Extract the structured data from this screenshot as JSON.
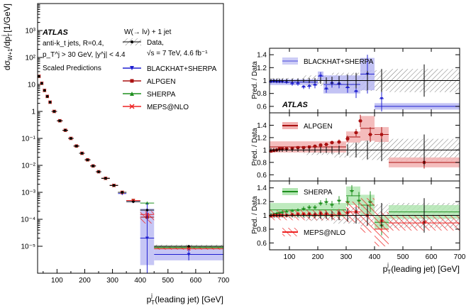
{
  "colors": {
    "data": "#000000",
    "blackhat": "#1f1fd0",
    "blackhat_band": "#b8b8f2",
    "alpgen": "#aa1111",
    "alpgen_band": "#f2b0b0",
    "sherpa": "#1f8f1f",
    "sherpa_band": "#b3e6b3",
    "meps": "#ee2222",
    "hatch": "#777777"
  },
  "chart_data": [
    {
      "type": "scatter",
      "xlabel": "p_T^j (leading jet) [GeV]",
      "ylabel": "dσ_W+1 / dp_T^j [1/GeV]",
      "xlim": [
        30,
        700
      ],
      "ylog": true,
      "ylim_exponents": [
        -6,
        4
      ],
      "x_ticks": [
        100,
        200,
        300,
        400,
        500,
        600,
        700
      ],
      "y_ticks": [
        {
          "exp": 3,
          "label": "10³"
        },
        {
          "exp": 2,
          "label": "10²"
        },
        {
          "exp": 1,
          "label": "10"
        },
        {
          "exp": 0,
          "label": "1"
        },
        {
          "exp": -1,
          "label": "10⁻¹"
        },
        {
          "exp": -2,
          "label": "10⁻²"
        },
        {
          "exp": -3,
          "label": "10⁻³"
        },
        {
          "exp": -4,
          "label": "10⁻⁴"
        },
        {
          "exp": -5,
          "label": "10⁻⁵"
        }
      ],
      "atlas_label": "ATLAS",
      "annotation_lines": [
        "anti-k_t jets, R=0.4,",
        "p_T^j > 30 GeV, |y^j| < 4.4",
        "Scaled Predictions"
      ],
      "process_label": "W(→ lν) + 1 jet",
      "legend": {
        "placement": "top-right",
        "data_label": "Data,",
        "data_sublabel": "√s = 7 TeV, 4.6 fb⁻¹",
        "entries": [
          "BLACKHAT+SHERPA",
          "ALPGEN",
          "SHERPA",
          "MEPS@NLO"
        ]
      },
      "bins": [
        [
          30,
          40
        ],
        [
          40,
          50
        ],
        [
          50,
          60
        ],
        [
          60,
          70
        ],
        [
          70,
          80
        ],
        [
          80,
          100
        ],
        [
          100,
          120
        ],
        [
          120,
          140
        ],
        [
          140,
          160
        ],
        [
          160,
          180
        ],
        [
          180,
          200
        ],
        [
          200,
          220
        ],
        [
          220,
          240
        ],
        [
          240,
          260
        ],
        [
          260,
          290
        ],
        [
          290,
          320
        ],
        [
          320,
          350
        ],
        [
          350,
          400
        ],
        [
          400,
          450
        ],
        [
          450,
          700
        ]
      ],
      "series": [
        {
          "name": "Data",
          "y": [
            20,
            11,
            6,
            3.6,
            2.2,
            1.0,
            0.45,
            0.2,
            0.1,
            0.052,
            0.028,
            0.016,
            0.0095,
            0.0058,
            0.0033,
            0.0018,
            0.001,
            0.00045,
            0.00022,
            1e-05
          ]
        },
        {
          "name": "BLACKHAT+SHERPA",
          "y": [
            20,
            11,
            6,
            3.6,
            2.2,
            1.0,
            0.45,
            0.2,
            0.1,
            0.052,
            0.028,
            0.016,
            0.0095,
            0.0058,
            0.0033,
            0.0018,
            0.0009,
            0.00045,
            2e-05,
            5e-06
          ]
        },
        {
          "name": "ALPGEN",
          "y": [
            20,
            11,
            6,
            3.6,
            2.2,
            1.0,
            0.45,
            0.2,
            0.1,
            0.052,
            0.028,
            0.016,
            0.0095,
            0.0058,
            0.0033,
            0.0018,
            0.001,
            0.0005,
            0.00012,
            9e-06
          ]
        },
        {
          "name": "SHERPA",
          "y": [
            20,
            11,
            6,
            3.6,
            2.2,
            1.0,
            0.45,
            0.2,
            0.1,
            0.052,
            0.028,
            0.016,
            0.0095,
            0.0058,
            0.0033,
            0.0018,
            0.001,
            0.0005,
            0.0004,
            9e-06
          ]
        },
        {
          "name": "MEPS@NLO",
          "y": [
            20,
            11,
            6,
            3.6,
            2.2,
            1.0,
            0.45,
            0.2,
            0.1,
            0.052,
            0.028,
            0.016,
            0.0095,
            0.0058,
            0.0033,
            0.0018,
            0.001,
            0.0005,
            0.00015,
            8e-06
          ]
        }
      ]
    },
    {
      "type": "scatter",
      "xlabel": "p_T^j (leading jet) [GeV]",
      "ylabel": "Pred. / Data",
      "xlim": [
        30,
        700
      ],
      "x_ticks": [
        100,
        200,
        300,
        400,
        500,
        600,
        700
      ],
      "atlas_label": "ATLAS",
      "panels": [
        {
          "legend": "BLACKHAT+SHERPA",
          "ylim": [
            0.5,
            1.5
          ],
          "y_ticks": [
            0.6,
            0.8,
            1,
            1.2,
            1.4
          ],
          "points": [
            {
              "x": 35,
              "y": 0.98,
              "e": 0.02
            },
            {
              "x": 45,
              "y": 0.99,
              "e": 0.02
            },
            {
              "x": 55,
              "y": 0.98,
              "e": 0.02
            },
            {
              "x": 65,
              "y": 0.98,
              "e": 0.02
            },
            {
              "x": 75,
              "y": 0.98,
              "e": 0.02
            },
            {
              "x": 90,
              "y": 0.97,
              "e": 0.02
            },
            {
              "x": 110,
              "y": 0.95,
              "e": 0.03
            },
            {
              "x": 130,
              "y": 0.95,
              "e": 0.03
            },
            {
              "x": 150,
              "y": 0.9,
              "e": 0.03
            },
            {
              "x": 170,
              "y": 0.91,
              "e": 0.04
            },
            {
              "x": 190,
              "y": 0.93,
              "e": 0.05
            },
            {
              "x": 210,
              "y": 1.07,
              "e": 0.06
            },
            {
              "x": 230,
              "y": 0.87,
              "e": 0.06
            },
            {
              "x": 250,
              "y": 0.96,
              "e": 0.07
            },
            {
              "x": 275,
              "y": 0.95,
              "e": 0.07
            },
            {
              "x": 305,
              "y": 0.89,
              "e": 0.08
            },
            {
              "x": 335,
              "y": 0.83,
              "e": 0.1
            },
            {
              "x": 375,
              "y": 1.1,
              "e": 0.3
            },
            {
              "x": 425,
              "y": 0.72,
              "e": 0.2
            }
          ],
          "bands": [
            {
              "x0": 30,
              "x1": 200,
              "lo": 0.93,
              "hi": 1.02
            },
            {
              "x0": 200,
              "x1": 220,
              "lo": 1.0,
              "hi": 1.14
            },
            {
              "x0": 220,
              "x1": 350,
              "lo": 0.8,
              "hi": 1.08
            },
            {
              "x0": 350,
              "x1": 400,
              "lo": 0.85,
              "hi": 1.35
            },
            {
              "x0": 400,
              "x1": 700,
              "lo": 0.55,
              "hi": 0.65
            }
          ]
        },
        {
          "legend": "ALPGEN",
          "ylim": [
            0.5,
            1.6
          ],
          "y_ticks": [
            0.6,
            0.8,
            1,
            1.2,
            1.4
          ],
          "points": [
            {
              "x": 35,
              "y": 0.98,
              "e": 0.02
            },
            {
              "x": 45,
              "y": 0.99,
              "e": 0.02
            },
            {
              "x": 55,
              "y": 1.0,
              "e": 0.02
            },
            {
              "x": 65,
              "y": 1.02,
              "e": 0.02
            },
            {
              "x": 75,
              "y": 1.02,
              "e": 0.02
            },
            {
              "x": 90,
              "y": 1.02,
              "e": 0.02
            },
            {
              "x": 110,
              "y": 1.03,
              "e": 0.02
            },
            {
              "x": 130,
              "y": 1.04,
              "e": 0.02
            },
            {
              "x": 150,
              "y": 1.04,
              "e": 0.02
            },
            {
              "x": 170,
              "y": 1.05,
              "e": 0.02
            },
            {
              "x": 190,
              "y": 1.06,
              "e": 0.03
            },
            {
              "x": 210,
              "y": 1.08,
              "e": 0.03
            },
            {
              "x": 230,
              "y": 1.09,
              "e": 0.03
            },
            {
              "x": 250,
              "y": 1.12,
              "e": 0.03
            },
            {
              "x": 275,
              "y": 1.13,
              "e": 0.04
            },
            {
              "x": 305,
              "y": 1.18,
              "e": 0.05
            },
            {
              "x": 335,
              "y": 1.28,
              "e": 0.06
            },
            {
              "x": 350,
              "y": 1.47,
              "e": 0.1
            },
            {
              "x": 385,
              "y": 1.25,
              "e": 0.12
            },
            {
              "x": 425,
              "y": 1.25,
              "e": 0.12
            },
            {
              "x": 575,
              "y": 0.8,
              "e": 0.1
            }
          ],
          "bands": [
            {
              "x0": 30,
              "x1": 300,
              "lo": 0.96,
              "hi": 1.14
            },
            {
              "x0": 300,
              "x1": 350,
              "lo": 1.12,
              "hi": 1.3
            },
            {
              "x0": 350,
              "x1": 400,
              "lo": 1.15,
              "hi": 1.55
            },
            {
              "x0": 400,
              "x1": 450,
              "lo": 1.13,
              "hi": 1.37
            },
            {
              "x0": 450,
              "x1": 700,
              "lo": 0.72,
              "hi": 0.88
            }
          ]
        },
        {
          "legend_sherpa": "SHERPA",
          "legend_meps": "MEPS@NLO",
          "ylim": [
            0.5,
            1.5
          ],
          "y_ticks": [
            0.6,
            0.8,
            1,
            1.2,
            1.4
          ],
          "points_sherpa": [
            {
              "x": 35,
              "y": 1.0,
              "e": 0.02
            },
            {
              "x": 45,
              "y": 1.02,
              "e": 0.02
            },
            {
              "x": 55,
              "y": 1.03,
              "e": 0.02
            },
            {
              "x": 65,
              "y": 1.04,
              "e": 0.02
            },
            {
              "x": 75,
              "y": 1.05,
              "e": 0.02
            },
            {
              "x": 90,
              "y": 1.06,
              "e": 0.02
            },
            {
              "x": 110,
              "y": 1.07,
              "e": 0.02
            },
            {
              "x": 130,
              "y": 1.08,
              "e": 0.02
            },
            {
              "x": 150,
              "y": 1.1,
              "e": 0.03
            },
            {
              "x": 170,
              "y": 1.12,
              "e": 0.03
            },
            {
              "x": 190,
              "y": 1.12,
              "e": 0.03
            },
            {
              "x": 210,
              "y": 1.18,
              "e": 0.04
            },
            {
              "x": 230,
              "y": 1.2,
              "e": 0.05
            },
            {
              "x": 250,
              "y": 1.16,
              "e": 0.05
            },
            {
              "x": 275,
              "y": 1.22,
              "e": 0.06
            },
            {
              "x": 305,
              "y": 1.2,
              "e": 0.07
            },
            {
              "x": 320,
              "y": 1.36,
              "e": 0.08
            },
            {
              "x": 345,
              "y": 1.22,
              "e": 0.12
            },
            {
              "x": 385,
              "y": 1.2,
              "e": 0.15
            },
            {
              "x": 425,
              "y": 0.86,
              "e": 0.15
            }
          ],
          "points_meps": [
            {
              "x": 35,
              "y": 0.99,
              "e": 0.02
            },
            {
              "x": 45,
              "y": 1.0,
              "e": 0.02
            },
            {
              "x": 55,
              "y": 1.0,
              "e": 0.02
            },
            {
              "x": 65,
              "y": 1.0,
              "e": 0.02
            },
            {
              "x": 75,
              "y": 1.0,
              "e": 0.02
            },
            {
              "x": 90,
              "y": 1.0,
              "e": 0.02
            },
            {
              "x": 110,
              "y": 1.01,
              "e": 0.03
            },
            {
              "x": 130,
              "y": 1.02,
              "e": 0.03
            },
            {
              "x": 150,
              "y": 1.02,
              "e": 0.03
            },
            {
              "x": 170,
              "y": 1.02,
              "e": 0.03
            },
            {
              "x": 190,
              "y": 1.01,
              "e": 0.04
            },
            {
              "x": 210,
              "y": 1.03,
              "e": 0.04
            },
            {
              "x": 230,
              "y": 1.02,
              "e": 0.05
            },
            {
              "x": 250,
              "y": 1.0,
              "e": 0.05
            },
            {
              "x": 275,
              "y": 1.03,
              "e": 0.06
            },
            {
              "x": 305,
              "y": 1.04,
              "e": 0.07
            },
            {
              "x": 335,
              "y": 1.05,
              "e": 0.1
            },
            {
              "x": 375,
              "y": 1.0,
              "e": 0.15
            },
            {
              "x": 425,
              "y": 0.92,
              "e": 0.15
            },
            {
              "x": 575,
              "y": 0.9,
              "e": 0.12
            }
          ],
          "bands_sherpa": [
            {
              "x0": 30,
              "x1": 300,
              "lo": 0.98,
              "hi": 1.18
            },
            {
              "x0": 300,
              "x1": 350,
              "lo": 1.15,
              "hi": 1.42
            },
            {
              "x0": 350,
              "x1": 400,
              "lo": 1.0,
              "hi": 1.3
            },
            {
              "x0": 400,
              "x1": 450,
              "lo": 0.8,
              "hi": 1.0
            },
            {
              "x0": 450,
              "x1": 700,
              "lo": 0.95,
              "hi": 1.15
            }
          ],
          "bands_meps": [
            {
              "x0": 30,
              "x1": 300,
              "lo": 0.93,
              "hi": 1.08
            },
            {
              "x0": 300,
              "x1": 350,
              "lo": 0.9,
              "hi": 1.2
            },
            {
              "x0": 350,
              "x1": 400,
              "lo": 0.75,
              "hi": 1.25
            },
            {
              "x0": 400,
              "x1": 450,
              "lo": 0.55,
              "hi": 1.05
            },
            {
              "x0": 450,
              "x1": 700,
              "lo": 0.78,
              "hi": 1.0
            }
          ]
        }
      ],
      "data_band": [
        {
          "x0": 30,
          "x1": 150,
          "lo": 0.96,
          "hi": 1.04
        },
        {
          "x0": 150,
          "x1": 250,
          "lo": 0.92,
          "hi": 1.08
        },
        {
          "x0": 250,
          "x1": 350,
          "lo": 0.88,
          "hi": 1.12
        },
        {
          "x0": 350,
          "x1": 450,
          "lo": 0.84,
          "hi": 1.16
        },
        {
          "x0": 450,
          "x1": 700,
          "lo": 0.82,
          "hi": 1.18
        }
      ],
      "data_points": [
        {
          "x": 35,
          "e": 0.03
        },
        {
          "x": 45,
          "e": 0.03
        },
        {
          "x": 55,
          "e": 0.03
        },
        {
          "x": 65,
          "e": 0.03
        },
        {
          "x": 75,
          "e": 0.03
        },
        {
          "x": 90,
          "e": 0.03
        },
        {
          "x": 110,
          "e": 0.03
        },
        {
          "x": 130,
          "e": 0.03
        },
        {
          "x": 150,
          "e": 0.03
        },
        {
          "x": 170,
          "e": 0.04
        },
        {
          "x": 190,
          "e": 0.04
        },
        {
          "x": 210,
          "e": 0.05
        },
        {
          "x": 230,
          "e": 0.05
        },
        {
          "x": 250,
          "e": 0.06
        },
        {
          "x": 275,
          "e": 0.07
        },
        {
          "x": 305,
          "e": 0.09
        },
        {
          "x": 335,
          "e": 0.12
        },
        {
          "x": 375,
          "e": 0.15
        },
        {
          "x": 425,
          "e": 0.18
        },
        {
          "x": 575,
          "e": 0.25
        }
      ]
    }
  ]
}
